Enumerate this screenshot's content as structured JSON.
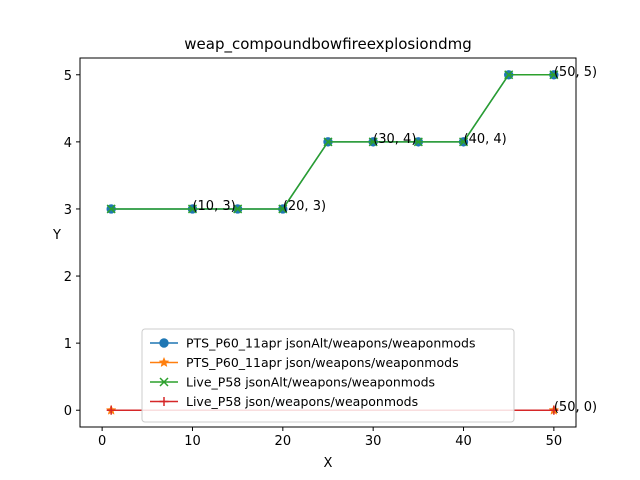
{
  "chart_data": {
    "type": "line",
    "title": "weap_compoundbowfireexplosiondmg",
    "xlabel": "X",
    "ylabel": "Y",
    "xlim": [
      -2.45,
      52.45
    ],
    "ylim": [
      -0.25,
      5.25
    ],
    "xticks": [
      0,
      10,
      20,
      30,
      40,
      50
    ],
    "yticks": [
      0,
      1,
      2,
      3,
      4,
      5
    ],
    "legend_position": "lower center",
    "grid": false,
    "series": [
      {
        "name": "PTS_P60_11apr jsonAlt/weapons/weaponmods",
        "color": "#1f77b4",
        "marker": "circle",
        "x": [
          1,
          10,
          15,
          20,
          25,
          30,
          35,
          40,
          45,
          50
        ],
        "y": [
          3,
          3,
          3,
          3,
          4,
          4,
          4,
          4,
          5,
          5
        ]
      },
      {
        "name": "PTS_P60_11apr json/weapons/weaponmods",
        "color": "#ff7f0e",
        "marker": "star",
        "x": [
          1,
          50
        ],
        "y": [
          0,
          0
        ]
      },
      {
        "name": "Live_P58 jsonAlt/weapons/weaponmods",
        "color": "#2ca02c",
        "marker": "x",
        "x": [
          1,
          10,
          15,
          20,
          25,
          30,
          35,
          40,
          45,
          50
        ],
        "y": [
          3,
          3,
          3,
          3,
          4,
          4,
          4,
          4,
          5,
          5
        ]
      },
      {
        "name": "Live_P58 json/weapons/weaponmods",
        "color": "#d62728",
        "marker": "plus",
        "x": [
          1,
          50
        ],
        "y": [
          0,
          0
        ]
      }
    ],
    "annotations": [
      {
        "text": "(10, 3)",
        "x": 10,
        "y": 3
      },
      {
        "text": "(20, 3)",
        "x": 20,
        "y": 3
      },
      {
        "text": "(30, 4)",
        "x": 30,
        "y": 4
      },
      {
        "text": "(40, 4)",
        "x": 40,
        "y": 4
      },
      {
        "text": "(50, 5)",
        "x": 50,
        "y": 5
      },
      {
        "text": "(50, 0)",
        "x": 50,
        "y": 0
      }
    ]
  }
}
